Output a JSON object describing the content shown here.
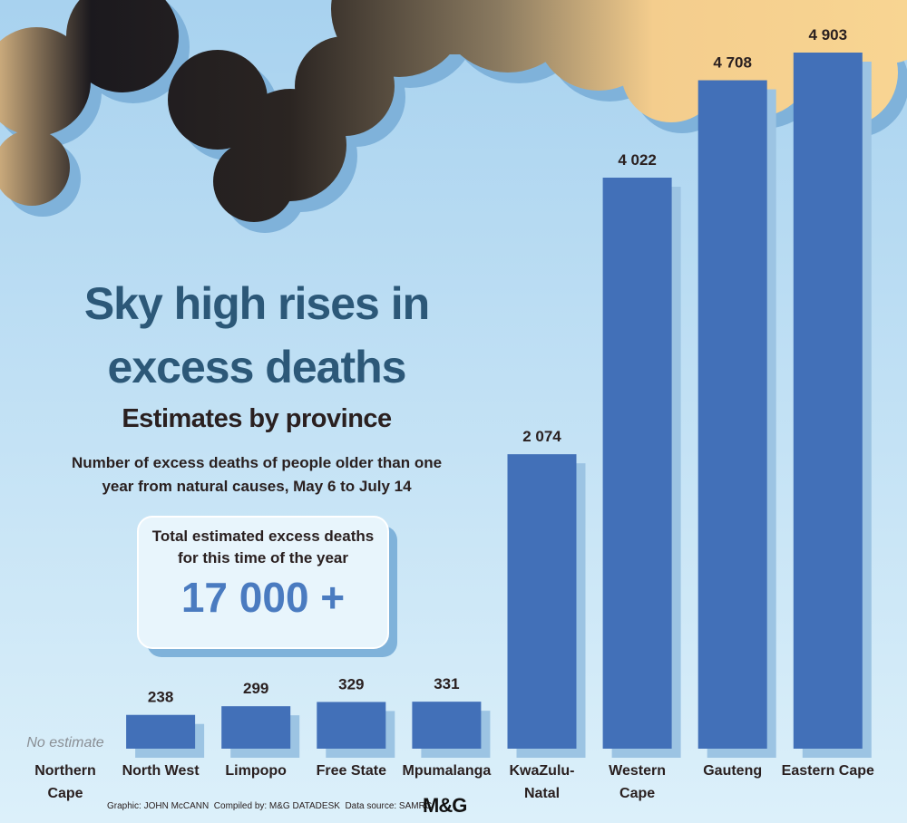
{
  "chart_data": {
    "type": "bar",
    "title": "Sky high rises in excess deaths",
    "subtitle": "Estimates by province",
    "description": "Number of excess deaths of people older than one year from natural causes, May 6 to July 14",
    "total_box": {
      "text": "Total estimated excess deaths for this time of the year",
      "total": "17 000 +"
    },
    "categories": [
      "Northern Cape",
      "North West",
      "Limpopo",
      "Free State",
      "Mpumalanga",
      "KwaZulu-Natal",
      "Western Cape",
      "Gauteng",
      "Eastern Cape"
    ],
    "values": [
      null,
      238,
      299,
      329,
      331,
      2074,
      4022,
      4708,
      4903
    ],
    "value_labels": [
      "No estimate",
      "238",
      "299",
      "329",
      "331",
      "2 074",
      "4 022",
      "4 708",
      "4 903"
    ],
    "color": "#4270b8",
    "footer": "Graphic: JOHN McCANN  Compiled by: M&G DATADESK  Data source: SAMRC",
    "logo": "M&G"
  }
}
